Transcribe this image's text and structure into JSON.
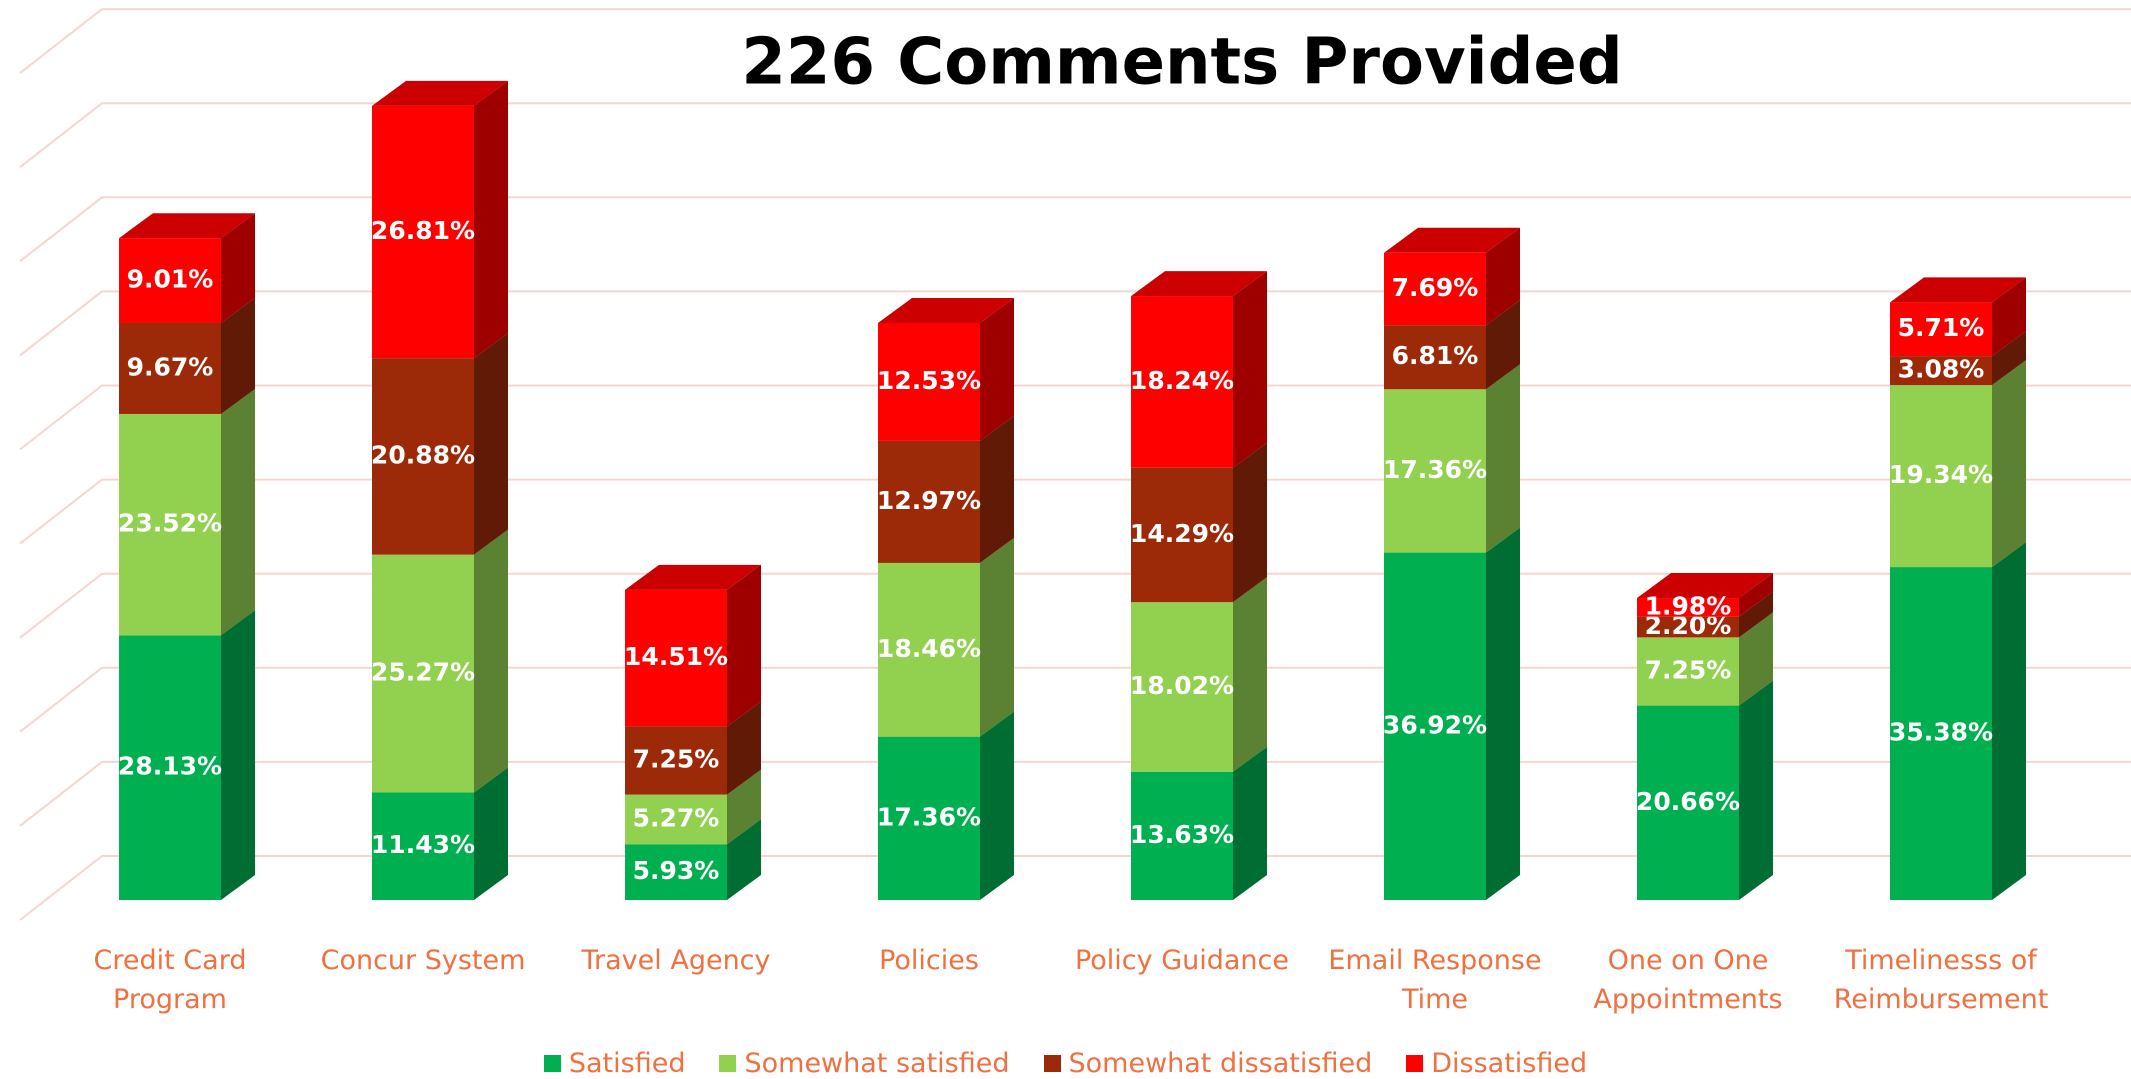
{
  "chart_data": {
    "type": "bar3d_stacked",
    "title": "226 Comments Provided",
    "categories": [
      "Credit Card Program",
      "Concur System",
      "Travel Agency",
      "Policies",
      "Policy Guidance",
      "Email Response Time",
      "One on One Appointments",
      "Timelinesss of Reimbursement"
    ],
    "series": [
      {
        "name": "Satisfied",
        "color": "#00b050",
        "values": [
          28.13,
          11.43,
          5.93,
          17.36,
          13.63,
          36.92,
          20.66,
          35.38
        ],
        "value_labels": [
          "28.13%",
          "11.43%",
          "5.93%",
          "17.36%",
          "13.63%",
          "36.92%",
          "20.66%",
          "35.38%"
        ]
      },
      {
        "name": "Somewhat satisfied",
        "color": "#92d050",
        "values": [
          23.52,
          25.27,
          5.27,
          18.46,
          18.02,
          17.36,
          7.25,
          19.34
        ],
        "value_labels": [
          "23.52%",
          "25.27%",
          "5.27%",
          "18.46%",
          "18.02%",
          "17.36%",
          "7.25%",
          "19.34%"
        ]
      },
      {
        "name": "Somewhat dissatisfied",
        "color": "#9c2a09",
        "values": [
          9.67,
          20.88,
          7.25,
          12.97,
          14.29,
          6.81,
          2.2,
          3.08
        ],
        "value_labels": [
          "9.67%",
          "20.88%",
          "7.25%",
          "12.97%",
          "14.29%",
          "6.81%",
          "2.20%",
          "3.08%"
        ]
      },
      {
        "name": "Dissatisfied",
        "color": "#ff0000",
        "values": [
          9.01,
          26.81,
          14.51,
          12.53,
          18.24,
          7.69,
          1.98,
          5.71
        ],
        "value_labels": [
          "9.01%",
          "26.81%",
          "14.51%",
          "12.53%",
          "18.24%",
          "7.69%",
          "1.98%",
          "5.71%"
        ]
      }
    ],
    "ylim": [
      0,
      90
    ],
    "yticks": [
      0,
      10,
      20,
      30,
      40,
      50,
      60,
      70,
      80,
      90
    ],
    "grid": true,
    "legend": "bottom"
  }
}
